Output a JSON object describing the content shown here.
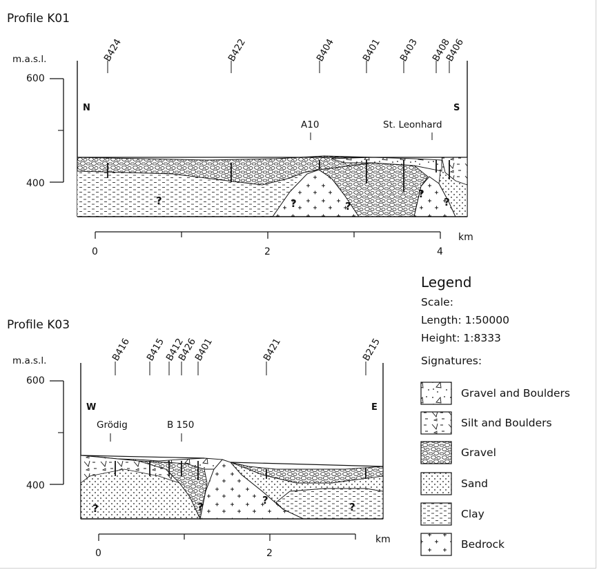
{
  "profile_k01": {
    "title": "Profile K01",
    "y_unit": "m.a.s.l.",
    "y_ticks": [
      "600",
      "400"
    ],
    "side_left": "N",
    "side_right": "S",
    "boreholes": [
      "B424",
      "B422",
      "B404",
      "B401",
      "B403",
      "B408",
      "B406"
    ],
    "places": [
      "A10",
      "St. Leonhard"
    ],
    "km_ticks": [
      "0",
      "2",
      "4"
    ],
    "km_unit": "km",
    "unknown_marker": "?"
  },
  "profile_k03": {
    "title": "Profile K03",
    "y_unit": "m.a.s.l.",
    "y_ticks": [
      "600",
      "400"
    ],
    "side_left": "W",
    "side_right": "E",
    "boreholes": [
      "B416",
      "B415",
      "B412",
      "B426",
      "B401",
      "B421",
      "B215"
    ],
    "places": [
      "Grödig",
      "B 150"
    ],
    "km_ticks": [
      "0",
      "2"
    ],
    "km_unit": "km",
    "unknown_marker": "?"
  },
  "legend": {
    "title": "Legend",
    "scale_label": "Scale:",
    "length": "Length: 1:50000",
    "height": "Height:  1:8333",
    "signatures_label": "Signatures:",
    "items": [
      {
        "label": "Gravel and Boulders",
        "icon": "gravel-boulders-swatch"
      },
      {
        "label": "Silt and Boulders",
        "icon": "silt-boulders-swatch"
      },
      {
        "label": "Gravel",
        "icon": "gravel-swatch"
      },
      {
        "label": "Sand",
        "icon": "sand-swatch"
      },
      {
        "label": "Clay",
        "icon": "clay-swatch"
      },
      {
        "label": "Bedrock",
        "icon": "bedrock-swatch"
      }
    ]
  }
}
